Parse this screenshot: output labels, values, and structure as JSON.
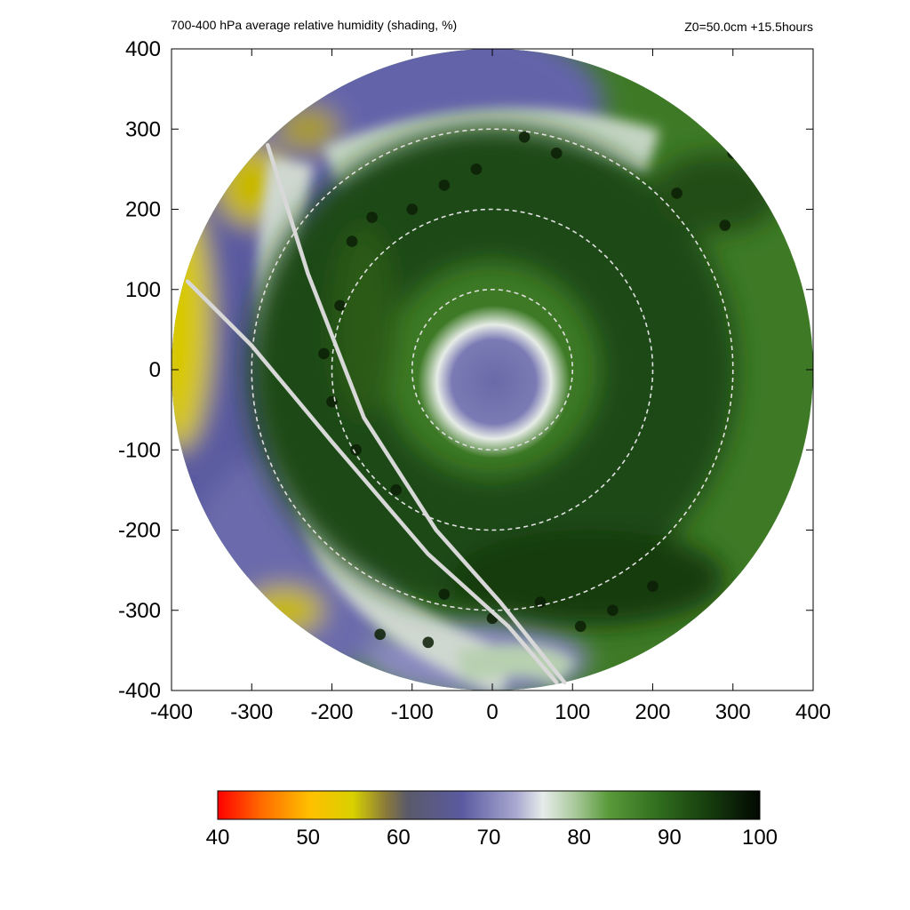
{
  "header": {
    "title": "700-400 hPa average relative humidity (shading, %)",
    "info": "Z0=50.0cm  +15.5hours"
  },
  "colors": {
    "dry": "#ff0000",
    "yellow": "#e6d800",
    "slate": "#5a5a9c",
    "pale": "#e4e8e4",
    "green": "#3a7a22",
    "dark": "#0a1a06",
    "rings": "#e0e0e0",
    "tracks": "#d8d8d8"
  },
  "chart_data": {
    "type": "heatmap",
    "title": "700-400 hPa average relative humidity (shading, %)",
    "subtitle": "Z0=50.0cm  +15.5hours",
    "xlim": [
      -400,
      400
    ],
    "ylim": [
      -400,
      400
    ],
    "xticks": [
      -400,
      -300,
      -200,
      -100,
      0,
      100,
      200,
      300,
      400
    ],
    "yticks": [
      -400,
      -300,
      -200,
      -100,
      0,
      100,
      200,
      300,
      400
    ],
    "domain_radius": 400,
    "range_rings": [
      100,
      200,
      300
    ],
    "colorbar": {
      "min": 40,
      "max": 100,
      "ticks": [
        40,
        50,
        60,
        70,
        80,
        90,
        100
      ]
    },
    "tracks": [
      {
        "points": [
          [
            -280,
            280
          ],
          [
            -230,
            120
          ],
          [
            -160,
            -60
          ],
          [
            -70,
            -200
          ],
          [
            10,
            -290
          ],
          [
            90,
            -390
          ]
        ]
      },
      {
        "points": [
          [
            -380,
            110
          ],
          [
            -300,
            30
          ],
          [
            -200,
            -90
          ],
          [
            -80,
            -230
          ],
          [
            20,
            -320
          ],
          [
            80,
            -390
          ]
        ]
      }
    ]
  }
}
